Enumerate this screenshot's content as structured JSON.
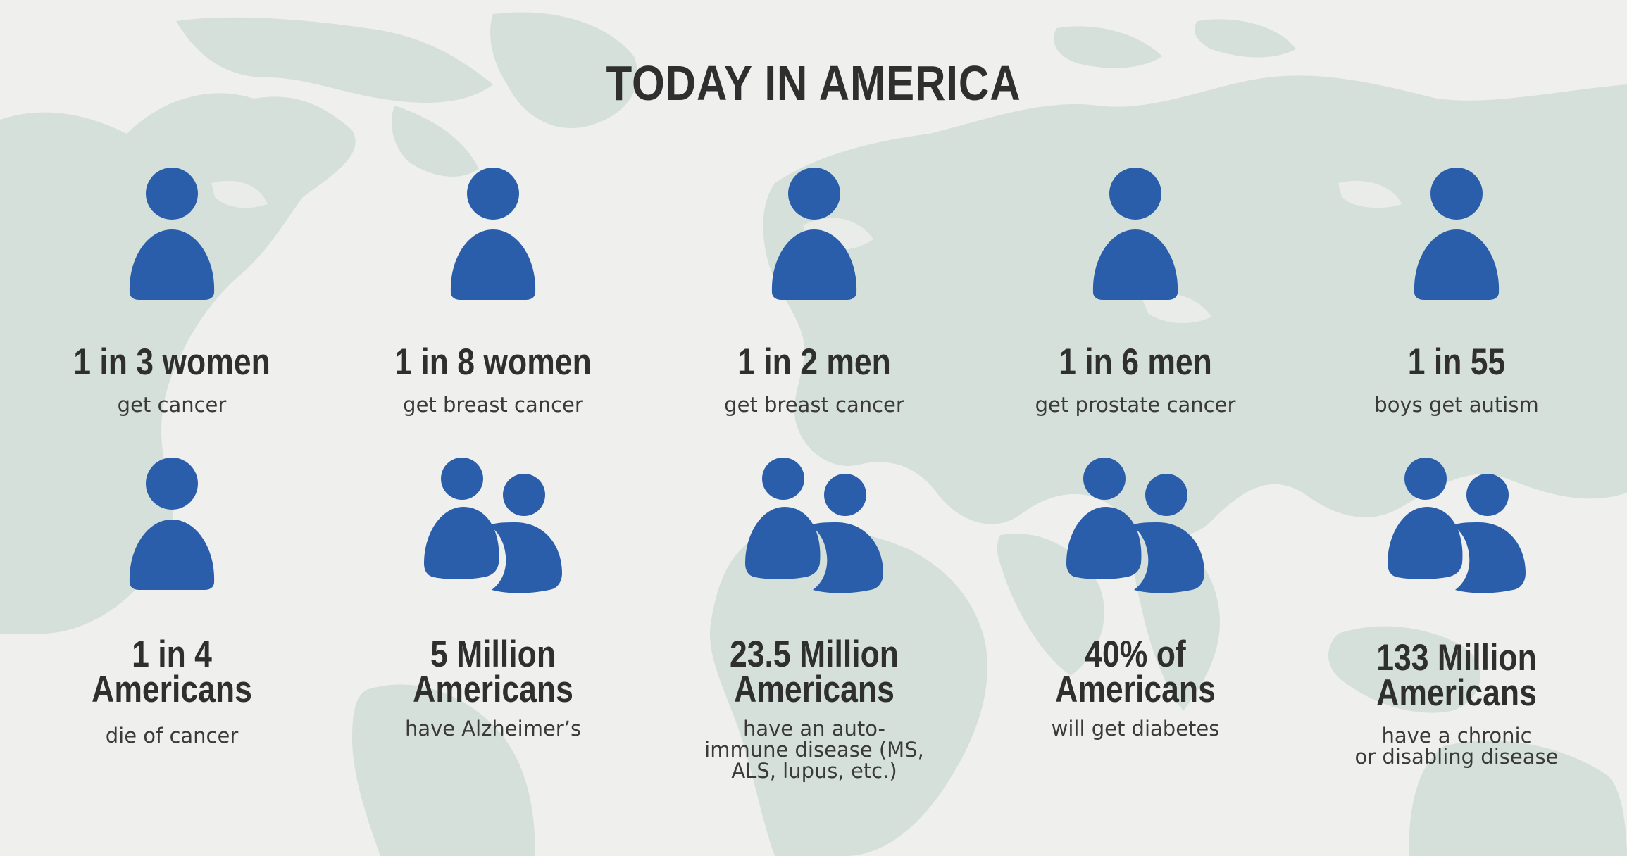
{
  "page_title": "TODAY IN AMERICA",
  "colors": {
    "background": "#efefed",
    "map": "#d3ded8",
    "icon": "#2a5eaa",
    "text": "#2f2f2f"
  },
  "stats": [
    {
      "headline": "1 in 3 women",
      "desc": "get cancer",
      "icon": "person-icon"
    },
    {
      "headline": "1 in 8 women",
      "desc": "get breast cancer",
      "icon": "person-icon"
    },
    {
      "headline": "1 in 2 men",
      "desc": "get breast cancer",
      "icon": "person-icon"
    },
    {
      "headline": "1 in 6 men",
      "desc": "get prostate cancer",
      "icon": "person-icon"
    },
    {
      "headline": "1 in 55",
      "desc": "boys get autism",
      "icon": "person-icon"
    },
    {
      "headline": "1 in 4\nAmericans",
      "desc": "die of cancer",
      "icon": "person-icon"
    },
    {
      "headline": "5 Million\nAmericans",
      "desc": "have Alzheimer’s",
      "icon": "people-icon"
    },
    {
      "headline": "23.5 Million\nAmericans",
      "desc": "have an auto-\nimmune disease (MS,\nALS, lupus, etc.)",
      "icon": "people-icon"
    },
    {
      "headline": "40% of\nAmericans",
      "desc": "will get diabetes",
      "icon": "people-icon"
    },
    {
      "headline": "133 Million\nAmericans",
      "desc": "have a chronic\nor disabling disease",
      "icon": "people-icon"
    }
  ]
}
